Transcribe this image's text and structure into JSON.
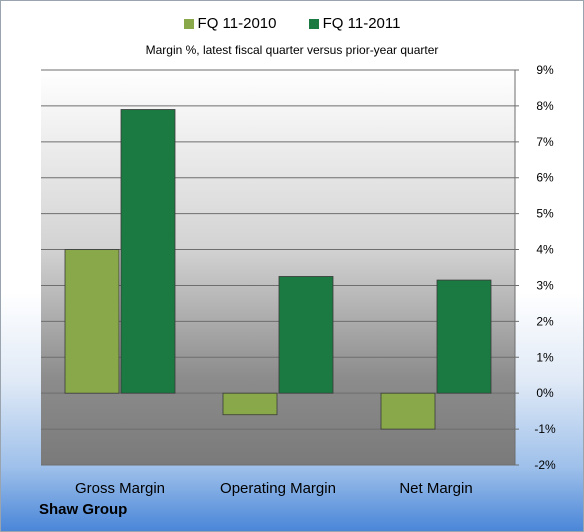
{
  "legend": {
    "series_1": "FQ 11-2010",
    "series_2": "FQ 11-2011"
  },
  "subtitle": "Margin %,  latest fiscal quarter versus prior-year quarter",
  "footer": "Shaw Group",
  "colors": {
    "series_1": "#88a84a",
    "series_2": "#1a7a42"
  },
  "chart_data": {
    "type": "bar",
    "title": "Margin %,  latest fiscal quarter versus prior-year quarter",
    "categories": [
      "Gross Margin",
      "Operating Margin",
      "Net Margin"
    ],
    "series": [
      {
        "name": "FQ 11-2010",
        "values": [
          4.0,
          -0.6,
          -1.0
        ]
      },
      {
        "name": "FQ 11-2011",
        "values": [
          7.9,
          3.25,
          3.15
        ]
      }
    ],
    "ylim": [
      -2,
      9
    ],
    "yticks": [
      "-2%",
      "-1%",
      "0%",
      "1%",
      "2%",
      "3%",
      "4%",
      "5%",
      "6%",
      "7%",
      "8%",
      "9%"
    ],
    "grid": true,
    "legend_position": "top"
  }
}
